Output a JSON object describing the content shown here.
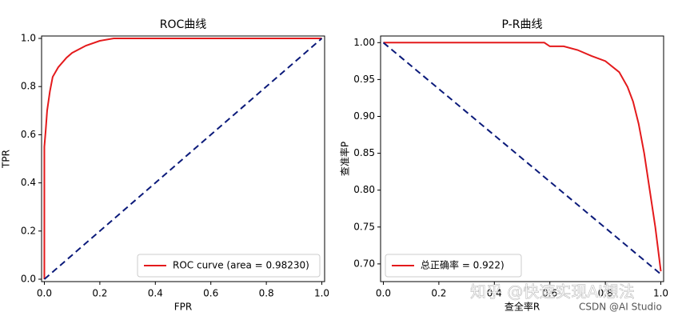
{
  "chart_data": [
    {
      "type": "line",
      "title": "ROC曲线",
      "xlabel": "FPR",
      "ylabel": "TPR",
      "xlim": [
        -0.01,
        1.01
      ],
      "ylim": [
        -0.01,
        1.01
      ],
      "xticks": [
        {
          "value": 0,
          "label": "0.0"
        },
        0.2,
        0.4,
        0.6,
        0.8,
        {
          "value": 1,
          "label": "1.0"
        }
      ],
      "yticks": [
        {
          "value": 0,
          "label": "0.0"
        },
        0.2,
        0.4,
        0.6,
        0.8,
        {
          "value": 1,
          "label": "1.0"
        }
      ],
      "legend": "lower right",
      "series": [
        {
          "name": "ROC curve (area = 0.98230)",
          "color": "#e41a1c",
          "linestyle": "solid",
          "x": [
            0,
            0,
            0.005,
            0.01,
            0.02,
            0.03,
            0.05,
            0.08,
            0.1,
            0.15,
            0.2,
            0.25,
            1
          ],
          "values": [
            0,
            0.55,
            0.62,
            0.7,
            0.78,
            0.84,
            0.88,
            0.92,
            0.94,
            0.97,
            0.99,
            1,
            1
          ]
        },
        {
          "color": "#0b1a7a",
          "linestyle": "dashed",
          "x": [
            0,
            1
          ],
          "values": [
            0,
            1
          ]
        }
      ]
    },
    {
      "type": "line",
      "title": "P-R曲线",
      "xlabel": "查全率R",
      "ylabel": "查准率P",
      "xlim": [
        -0.01,
        1.01
      ],
      "ylim": [
        0.676,
        1.009
      ],
      "xticks": [
        {
          "value": 0,
          "label": "0.0"
        },
        0.2,
        0.4,
        0.6,
        0.8,
        {
          "value": 1,
          "label": "1.0"
        }
      ],
      "yticks": [
        {
          "value": 1,
          "label": "1.00"
        },
        0.95,
        {
          "value": 0.9,
          "label": "0.90"
        },
        0.85,
        {
          "value": 0.8,
          "label": "0.80"
        },
        0.75,
        {
          "value": 0.7,
          "label": "0.70"
        }
      ],
      "legend": "lower left",
      "series": [
        {
          "name": "总正确率 = 0.922)",
          "color": "#e41a1c",
          "linestyle": "solid",
          "x": [
            0,
            0.58,
            0.6,
            0.65,
            0.7,
            0.75,
            0.8,
            0.85,
            0.88,
            0.9,
            0.92,
            0.94,
            0.96,
            0.98,
            0.99,
            1
          ],
          "values": [
            1,
            1,
            0.995,
            0.995,
            0.99,
            0.982,
            0.975,
            0.96,
            0.94,
            0.92,
            0.89,
            0.85,
            0.8,
            0.75,
            0.72,
            0.69
          ]
        },
        {
          "color": "#0b1a7a",
          "linestyle": "dashed",
          "x": [
            0,
            1
          ],
          "values": [
            1,
            0.686
          ]
        }
      ]
    }
  ],
  "watermarks": [
    "知乎 @快速实现AI想法",
    "CSDN @AI Studio"
  ]
}
